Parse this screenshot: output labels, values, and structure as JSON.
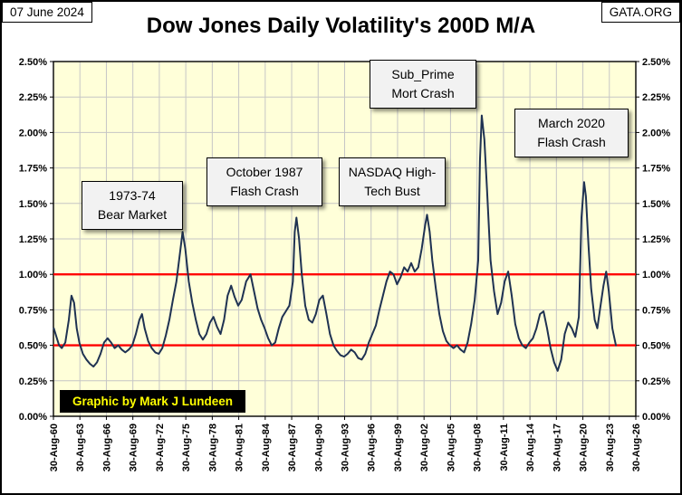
{
  "header": {
    "date": "07 June 2024",
    "site": "GATA.ORG",
    "title": "Dow Jones Daily Volatility's 200D M/A"
  },
  "credit": "Graphic by Mark J Lundeen",
  "annotations": [
    {
      "text": "1973-74\nBear Market"
    },
    {
      "text": "October 1987\nFlash Crash"
    },
    {
      "text": "NASDAQ High-\nTech Bust"
    },
    {
      "text": "Sub_Prime\nMort Crash"
    },
    {
      "text": "March 2020\nFlash Crash"
    }
  ],
  "chart_data": {
    "type": "line",
    "title": "Dow Jones Daily Volatility's 200D M/A",
    "xlabel": "",
    "ylabel": "",
    "ylim": [
      0,
      2.5
    ],
    "grid": true,
    "plot_bg": "#ffffd9",
    "grid_color": "#c6c6c6",
    "y_tick_labels": [
      "0.00%",
      "0.25%",
      "0.50%",
      "0.75%",
      "1.00%",
      "1.25%",
      "1.50%",
      "1.75%",
      "2.00%",
      "2.25%",
      "2.50%"
    ],
    "x_tick_labels": [
      "30-Aug-60",
      "30-Aug-63",
      "30-Aug-66",
      "30-Aug-69",
      "30-Aug-72",
      "30-Aug-75",
      "30-Aug-78",
      "30-Aug-81",
      "30-Aug-84",
      "30-Aug-87",
      "30-Aug-90",
      "30-Aug-93",
      "30-Aug-96",
      "30-Aug-99",
      "30-Aug-02",
      "30-Aug-05",
      "30-Aug-08",
      "30-Aug-11",
      "30-Aug-14",
      "30-Aug-17",
      "30-Aug-20",
      "30-Aug-23",
      "30-Aug-26"
    ],
    "x_range_years": [
      1960.66,
      2026.66
    ],
    "reference_lines": [
      {
        "value": 0.5,
        "color": "#ff0000"
      },
      {
        "value": 1.0,
        "color": "#ff0000"
      }
    ],
    "series": [
      {
        "name": "Dow Jones Daily Volatility's 200D M/A (%)",
        "color": "#1f3252",
        "points": [
          [
            1960.7,
            0.62
          ],
          [
            1961.0,
            0.56
          ],
          [
            1961.3,
            0.5
          ],
          [
            1961.6,
            0.48
          ],
          [
            1962.0,
            0.52
          ],
          [
            1962.4,
            0.68
          ],
          [
            1962.7,
            0.85
          ],
          [
            1963.0,
            0.8
          ],
          [
            1963.3,
            0.62
          ],
          [
            1963.6,
            0.52
          ],
          [
            1964.0,
            0.44
          ],
          [
            1964.4,
            0.4
          ],
          [
            1964.8,
            0.37
          ],
          [
            1965.2,
            0.35
          ],
          [
            1965.6,
            0.38
          ],
          [
            1966.0,
            0.44
          ],
          [
            1966.4,
            0.52
          ],
          [
            1966.8,
            0.55
          ],
          [
            1967.2,
            0.52
          ],
          [
            1967.6,
            0.48
          ],
          [
            1968.0,
            0.5
          ],
          [
            1968.4,
            0.47
          ],
          [
            1968.8,
            0.45
          ],
          [
            1969.2,
            0.47
          ],
          [
            1969.6,
            0.5
          ],
          [
            1970.0,
            0.58
          ],
          [
            1970.4,
            0.68
          ],
          [
            1970.7,
            0.72
          ],
          [
            1971.0,
            0.62
          ],
          [
            1971.4,
            0.53
          ],
          [
            1971.8,
            0.48
          ],
          [
            1972.2,
            0.45
          ],
          [
            1972.6,
            0.44
          ],
          [
            1973.0,
            0.48
          ],
          [
            1973.4,
            0.57
          ],
          [
            1973.8,
            0.68
          ],
          [
            1974.2,
            0.82
          ],
          [
            1974.6,
            0.95
          ],
          [
            1975.0,
            1.15
          ],
          [
            1975.3,
            1.3
          ],
          [
            1975.6,
            1.18
          ],
          [
            1976.0,
            0.95
          ],
          [
            1976.4,
            0.8
          ],
          [
            1976.8,
            0.68
          ],
          [
            1977.2,
            0.58
          ],
          [
            1977.6,
            0.54
          ],
          [
            1978.0,
            0.58
          ],
          [
            1978.4,
            0.66
          ],
          [
            1978.8,
            0.7
          ],
          [
            1979.2,
            0.63
          ],
          [
            1979.6,
            0.58
          ],
          [
            1980.0,
            0.68
          ],
          [
            1980.4,
            0.85
          ],
          [
            1980.8,
            0.92
          ],
          [
            1981.2,
            0.84
          ],
          [
            1981.6,
            0.78
          ],
          [
            1982.0,
            0.82
          ],
          [
            1982.5,
            0.95
          ],
          [
            1983.0,
            1.0
          ],
          [
            1983.4,
            0.88
          ],
          [
            1983.8,
            0.76
          ],
          [
            1984.2,
            0.68
          ],
          [
            1984.6,
            0.62
          ],
          [
            1985.0,
            0.55
          ],
          [
            1985.4,
            0.5
          ],
          [
            1985.8,
            0.52
          ],
          [
            1986.2,
            0.62
          ],
          [
            1986.6,
            0.7
          ],
          [
            1987.0,
            0.74
          ],
          [
            1987.4,
            0.78
          ],
          [
            1987.8,
            0.95
          ],
          [
            1988.0,
            1.3
          ],
          [
            1988.2,
            1.4
          ],
          [
            1988.5,
            1.25
          ],
          [
            1988.8,
            1.0
          ],
          [
            1989.2,
            0.78
          ],
          [
            1989.6,
            0.68
          ],
          [
            1990.0,
            0.66
          ],
          [
            1990.4,
            0.72
          ],
          [
            1990.8,
            0.82
          ],
          [
            1991.2,
            0.85
          ],
          [
            1991.6,
            0.72
          ],
          [
            1992.0,
            0.58
          ],
          [
            1992.4,
            0.5
          ],
          [
            1992.8,
            0.46
          ],
          [
            1993.2,
            0.43
          ],
          [
            1993.6,
            0.42
          ],
          [
            1994.0,
            0.44
          ],
          [
            1994.4,
            0.47
          ],
          [
            1994.8,
            0.45
          ],
          [
            1995.2,
            0.41
          ],
          [
            1995.6,
            0.4
          ],
          [
            1996.0,
            0.44
          ],
          [
            1996.4,
            0.52
          ],
          [
            1996.8,
            0.58
          ],
          [
            1997.2,
            0.64
          ],
          [
            1997.6,
            0.75
          ],
          [
            1998.0,
            0.85
          ],
          [
            1998.4,
            0.95
          ],
          [
            1998.8,
            1.02
          ],
          [
            1999.2,
            1.0
          ],
          [
            1999.6,
            0.93
          ],
          [
            2000.0,
            0.98
          ],
          [
            2000.4,
            1.05
          ],
          [
            2000.8,
            1.02
          ],
          [
            2001.2,
            1.08
          ],
          [
            2001.6,
            1.02
          ],
          [
            2002.0,
            1.05
          ],
          [
            2002.4,
            1.18
          ],
          [
            2002.8,
            1.35
          ],
          [
            2003.0,
            1.42
          ],
          [
            2003.3,
            1.3
          ],
          [
            2003.6,
            1.1
          ],
          [
            2004.0,
            0.9
          ],
          [
            2004.4,
            0.72
          ],
          [
            2004.8,
            0.6
          ],
          [
            2005.2,
            0.53
          ],
          [
            2005.6,
            0.5
          ],
          [
            2006.0,
            0.48
          ],
          [
            2006.4,
            0.5
          ],
          [
            2006.8,
            0.47
          ],
          [
            2007.2,
            0.45
          ],
          [
            2007.6,
            0.52
          ],
          [
            2008.0,
            0.65
          ],
          [
            2008.4,
            0.82
          ],
          [
            2008.8,
            1.1
          ],
          [
            2009.0,
            1.8
          ],
          [
            2009.2,
            2.12
          ],
          [
            2009.5,
            1.95
          ],
          [
            2009.8,
            1.6
          ],
          [
            2010.2,
            1.1
          ],
          [
            2010.6,
            0.88
          ],
          [
            2011.0,
            0.72
          ],
          [
            2011.4,
            0.8
          ],
          [
            2011.8,
            0.95
          ],
          [
            2012.2,
            1.02
          ],
          [
            2012.6,
            0.85
          ],
          [
            2013.0,
            0.65
          ],
          [
            2013.4,
            0.55
          ],
          [
            2013.8,
            0.5
          ],
          [
            2014.2,
            0.48
          ],
          [
            2014.6,
            0.52
          ],
          [
            2015.0,
            0.55
          ],
          [
            2015.4,
            0.62
          ],
          [
            2015.8,
            0.72
          ],
          [
            2016.2,
            0.74
          ],
          [
            2016.6,
            0.62
          ],
          [
            2017.0,
            0.48
          ],
          [
            2017.4,
            0.38
          ],
          [
            2017.8,
            0.32
          ],
          [
            2018.2,
            0.4
          ],
          [
            2018.6,
            0.58
          ],
          [
            2019.0,
            0.66
          ],
          [
            2019.4,
            0.62
          ],
          [
            2019.8,
            0.56
          ],
          [
            2020.2,
            0.7
          ],
          [
            2020.5,
            1.4
          ],
          [
            2020.8,
            1.65
          ],
          [
            2021.0,
            1.55
          ],
          [
            2021.3,
            1.2
          ],
          [
            2021.6,
            0.9
          ],
          [
            2022.0,
            0.68
          ],
          [
            2022.3,
            0.62
          ],
          [
            2022.6,
            0.75
          ],
          [
            2023.0,
            0.92
          ],
          [
            2023.3,
            1.02
          ],
          [
            2023.6,
            0.88
          ],
          [
            2024.0,
            0.62
          ],
          [
            2024.4,
            0.5
          ]
        ]
      }
    ]
  }
}
